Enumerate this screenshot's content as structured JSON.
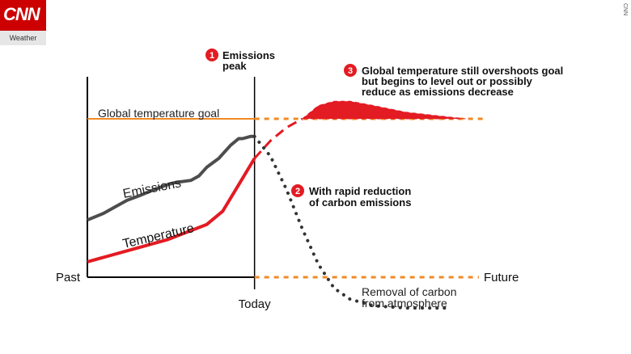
{
  "brand": {
    "logo_text": "CNN",
    "sub_text": "Weather",
    "watermark": "CNN"
  },
  "colors": {
    "accent": "#e31b23",
    "emissions": "#4d4d4d",
    "goal": "#f08a24",
    "axis": "#000000"
  },
  "chart_data": {
    "type": "line",
    "title": "",
    "xlabel_left": "Past",
    "xlabel_right": "Future",
    "today_label": "Today",
    "goal_label": "Global temperature goal",
    "goal_level": 0.72,
    "baseline_level": 0.0,
    "xlim": [
      0,
      1
    ],
    "ylim": [
      -0.2,
      1.0
    ],
    "today_x": 0.42,
    "series": [
      {
        "name": "Emissions",
        "style": "solid",
        "x": [
          0,
          0.04,
          0.1,
          0.13,
          0.17,
          0.2,
          0.22,
          0.26,
          0.28,
          0.3,
          0.33,
          0.36,
          0.38,
          0.39,
          0.41,
          0.42
        ],
        "y": [
          0.26,
          0.29,
          0.35,
          0.37,
          0.4,
          0.42,
          0.43,
          0.44,
          0.46,
          0.5,
          0.54,
          0.6,
          0.63,
          0.63,
          0.64,
          0.64
        ]
      },
      {
        "name": "Temperature",
        "style": "solid",
        "x": [
          0,
          0.1,
          0.2,
          0.3,
          0.34,
          0.38,
          0.42
        ],
        "y": [
          0.07,
          0.12,
          0.17,
          0.24,
          0.3,
          0.42,
          0.54
        ]
      },
      {
        "name": "Temperature (projected)",
        "style": "dashed",
        "x": [
          0.42,
          0.46,
          0.5,
          0.54
        ],
        "y": [
          0.54,
          0.62,
          0.68,
          0.72
        ]
      },
      {
        "name": "Emissions (projected)",
        "style": "dotted",
        "x": [
          0.42,
          0.46,
          0.5,
          0.54,
          0.58,
          0.62,
          0.66,
          0.72,
          0.8,
          0.9
        ],
        "y": [
          0.64,
          0.55,
          0.4,
          0.22,
          0.06,
          -0.05,
          -0.1,
          -0.13,
          -0.14,
          -0.14
        ]
      },
      {
        "name": "Overshoot",
        "style": "area",
        "x": [
          0.54,
          0.58,
          0.62,
          0.66,
          0.72,
          0.8,
          0.9,
          0.95
        ],
        "y": [
          0.72,
          0.78,
          0.8,
          0.8,
          0.78,
          0.75,
          0.73,
          0.72
        ]
      }
    ],
    "series_labels": {
      "emissions": "Emissions",
      "temperature": "Temperature",
      "removal": "Removal of carbon from atmosphere"
    },
    "annotations": [
      {
        "number": "1",
        "text": "Emissions peak"
      },
      {
        "number": "2",
        "text": "With rapid reduction of carbon emissions"
      },
      {
        "number": "3",
        "text": "Global temperature still overshoots goal but begins to level out or possibly reduce as emissions decrease"
      }
    ],
    "annotation_lines": {
      "a1": [
        "Emissions",
        "peak"
      ],
      "a2": [
        "With rapid reduction",
        "of carbon emissions"
      ],
      "a3": [
        "Global temperature still overshoots goal",
        "but begins to level out or possibly",
        "reduce as emissions decrease"
      ],
      "removal": [
        "Removal of carbon",
        "from atmosphere"
      ]
    }
  }
}
